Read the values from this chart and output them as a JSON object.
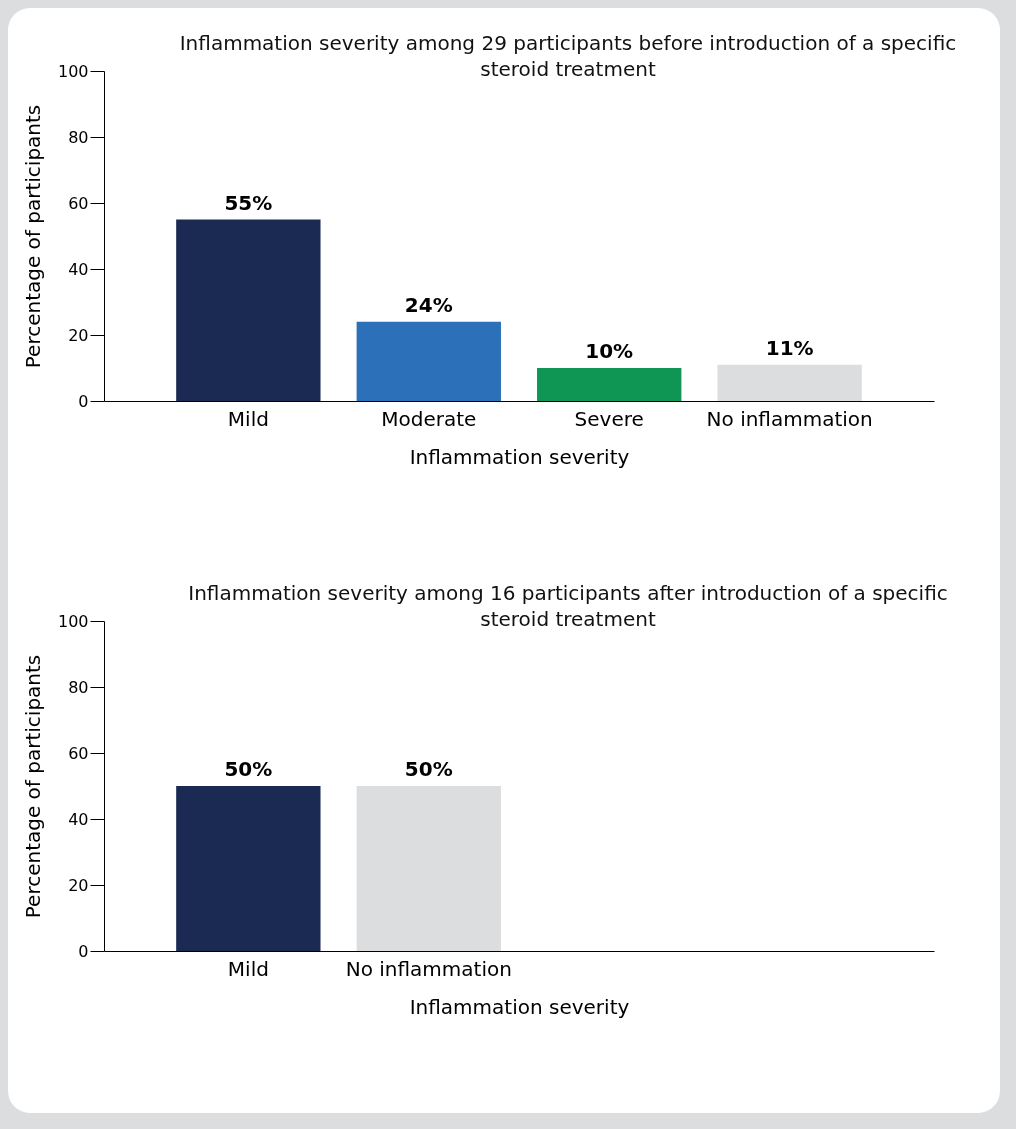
{
  "chart_data": [
    {
      "type": "bar",
      "title": "Inflammation severity among 29 participants before introduction of a specific steroid treatment",
      "xlabel": "Inflammation severity",
      "ylabel": "Percentage of participants",
      "categories": [
        "Mild",
        "Moderate",
        "Severe",
        "No inflammation"
      ],
      "values": [
        55,
        24,
        10,
        11
      ],
      "colors": [
        "#1b2a52",
        "#2b70b8",
        "#0f9655",
        "#dcdddf"
      ],
      "value_labels": [
        "55%",
        "24%",
        "10%",
        "11%"
      ],
      "ylim": [
        0,
        100
      ],
      "yticks": [
        0,
        20,
        40,
        60,
        80,
        100
      ],
      "grid": false,
      "legend": false
    },
    {
      "type": "bar",
      "title": "Inflammation severity among 16 participants after introduction of a specific steroid treatment",
      "xlabel": "Inflammation severity",
      "ylabel": "Percentage of participants",
      "categories": [
        "Mild",
        "No inflammation",
        null,
        null
      ],
      "values": [
        50,
        50,
        null,
        null
      ],
      "colors": [
        "#1b2a52",
        "#dcdddf",
        "#dcdddf",
        "#dcdddf"
      ],
      "value_labels": [
        "50%",
        "50%",
        null,
        null
      ],
      "ylim": [
        0,
        100
      ],
      "yticks": [
        0,
        20,
        40,
        60,
        80,
        100
      ],
      "grid": false,
      "legend": false
    }
  ]
}
